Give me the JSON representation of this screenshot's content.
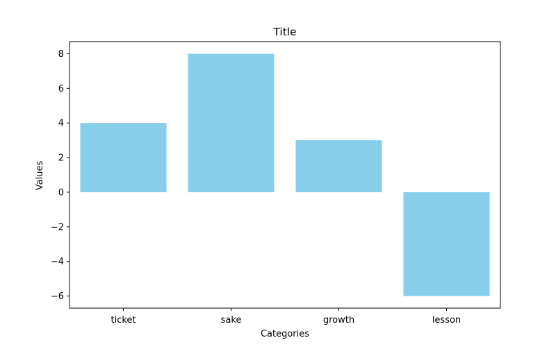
{
  "chart_data": {
    "type": "bar",
    "title": "Title",
    "xlabel": "Categories",
    "ylabel": "Values",
    "categories": [
      "ticket",
      "sake",
      "growth",
      "lesson"
    ],
    "values": [
      4,
      8,
      3,
      -6
    ],
    "ylim": [
      -6.7,
      8.7
    ],
    "yticks": [
      -6,
      -4,
      -2,
      0,
      2,
      4,
      6,
      8
    ],
    "ytick_labels": [
      "−6",
      "−4",
      "−2",
      "0",
      "2",
      "4",
      "6",
      "8"
    ],
    "bar_color": "#87ceeb",
    "grid": false,
    "legend": "none"
  }
}
